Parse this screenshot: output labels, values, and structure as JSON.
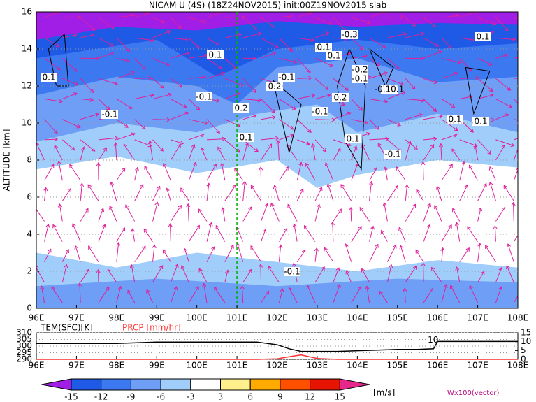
{
  "chart_data": {
    "type": "section",
    "title": "NICAM U (4S) (18Z24NOV2015) init:00Z19NOV2015 slab",
    "y_label": "ALTITUDE [km]",
    "xlim": [
      96,
      108
    ],
    "xticks": [
      {
        "value": 96,
        "label": "96E"
      },
      {
        "value": 97,
        "label": "97E"
      },
      {
        "value": 98,
        "label": "98E"
      },
      {
        "value": 99,
        "label": "99E"
      },
      {
        "value": 100,
        "label": "100E"
      },
      {
        "value": 101,
        "label": "101E"
      },
      {
        "value": 102,
        "label": "102E"
      },
      {
        "value": 103,
        "label": "103E"
      },
      {
        "value": 104,
        "label": "104E"
      },
      {
        "value": 105,
        "label": "105E"
      },
      {
        "value": 106,
        "label": "106E"
      },
      {
        "value": 107,
        "label": "107E"
      },
      {
        "value": 108,
        "label": "108E"
      }
    ],
    "ylim": [
      0,
      16
    ],
    "yticks": [
      0,
      2,
      4,
      6,
      8,
      10,
      12,
      14,
      16
    ],
    "marker_line_x": 101,
    "contour_labels": [
      "0.1",
      "-0.1",
      "-0.1",
      "0.1",
      "0.2",
      "0.1",
      "0.2",
      "-0.1",
      "0.1",
      "0.1",
      "-0.3",
      "-0.2",
      "-0.1",
      "-0.10.1",
      "-0.1",
      "0.2",
      "0.1",
      "-0.1",
      "0.1",
      "0.1",
      "0.1",
      "-0.1"
    ],
    "colorbar": {
      "ticks": [
        -15,
        -12,
        -9,
        -6,
        -3,
        3,
        6,
        9,
        12,
        15
      ],
      "colors": [
        "#a01ee6",
        "#1e5ae6",
        "#3c78f0",
        "#6e9ef5",
        "#a0cdfa",
        "#ffffff",
        "#fff08c",
        "#ffaa00",
        "#ff5000",
        "#e61400",
        "#b40014",
        "#e6288c"
      ],
      "unit": "[m/s]",
      "vector_label": "Wx100(vector)"
    },
    "panel": {
      "type": "line",
      "x": [
        96,
        97,
        98,
        99,
        100,
        101,
        101.5,
        102,
        102.3,
        102.6,
        103,
        103.5,
        104,
        104.5,
        105,
        105.5,
        105.9,
        106,
        106.5,
        107,
        108
      ],
      "series": [
        {
          "name": "TEM(SFC)[K]",
          "color": "#000000",
          "values": [
            302,
            302,
            302,
            303,
            303,
            303,
            303,
            301,
            298,
            296,
            296,
            296,
            296.5,
            297,
            297.5,
            297.5,
            298,
            303.5,
            303.5,
            303.5,
            303.5
          ]
        },
        {
          "name": "PRCP [mm/hr]",
          "color": "#ff3030",
          "axis": "y2",
          "values": [
            0,
            0,
            0,
            0,
            0,
            0,
            0,
            0.3,
            1.5,
            2.5,
            0.5,
            0,
            0,
            0,
            0,
            0,
            0,
            0,
            0,
            0,
            0
          ]
        }
      ],
      "ylim": [
        290,
        310
      ],
      "yticks": [
        290,
        295,
        300,
        305,
        310
      ],
      "y2lim": [
        0,
        15
      ],
      "y2ticks": [
        0,
        5,
        10,
        15
      ],
      "annotation": "10"
    }
  }
}
